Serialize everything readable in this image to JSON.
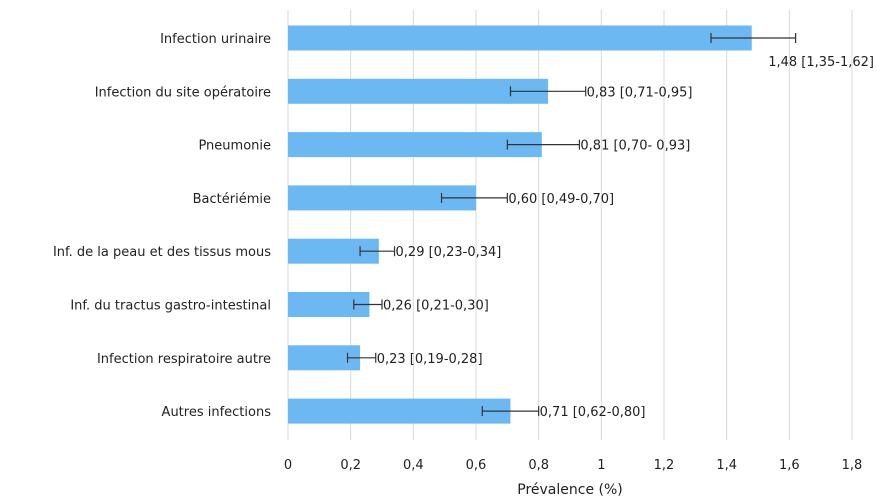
{
  "chart_data": {
    "type": "bar",
    "orientation": "horizontal",
    "xlabel": "Prévalence (%)",
    "xlim": [
      0,
      1.8
    ],
    "xticks": [
      "0",
      "0,2",
      "0,4",
      "0,6",
      "0,8",
      "1",
      "1,2",
      "1,4",
      "1,6",
      "1,8"
    ],
    "grid": "vertical",
    "bar_color": "#6cb8f2",
    "categories": [
      "Infection urinaire",
      "Infection du site opératoire",
      "Pneumonie",
      "Bactériémie",
      "Inf. de la peau et des tissus mous",
      "Inf. du tractus gastro-intestinal",
      "Infection respiratoire autre",
      "Autres infections"
    ],
    "values": [
      1.48,
      0.83,
      0.81,
      0.6,
      0.29,
      0.26,
      0.23,
      0.71
    ],
    "ci_low": [
      1.35,
      0.71,
      0.7,
      0.49,
      0.23,
      0.21,
      0.19,
      0.62
    ],
    "ci_high": [
      1.62,
      0.95,
      0.93,
      0.7,
      0.34,
      0.3,
      0.28,
      0.8
    ],
    "data_labels": [
      "1,48 [1,35-1,62]",
      "0,83 [0,71-0,95]",
      "0,81 [0,70- 0,93]",
      "0,60 [0,49-0,70]",
      "0,29 [0,23-0,34]",
      "0,26 [0,21-0,30]",
      "0,23 [0,19-0,28]",
      "0,71 [0,62-0,80]"
    ]
  }
}
